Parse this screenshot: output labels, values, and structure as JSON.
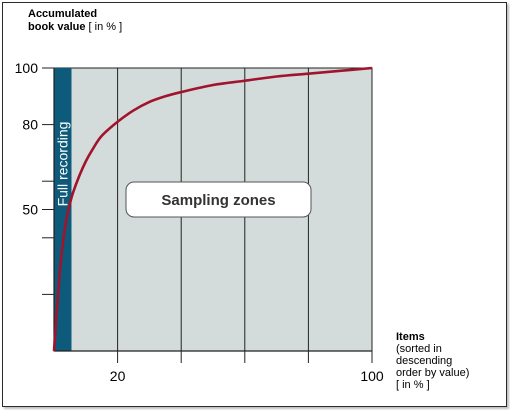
{
  "chart_data": {
    "type": "line",
    "y_title": {
      "line1": "Accumulated",
      "line2_bold": "book value",
      "line2_unit": " [ in % ]"
    },
    "x_title": {
      "bold": "Items",
      "line2": "(sorted in descending",
      "line3": "order by value)",
      "line4": "[ in % ]"
    },
    "xlim": [
      0,
      100
    ],
    "ylim": [
      0,
      100
    ],
    "y_tick_labels": [
      {
        "value": 100,
        "label": "100"
      },
      {
        "value": 80,
        "label": "80"
      },
      {
        "value": 50,
        "label": "50"
      }
    ],
    "x_tick_labels": [
      {
        "value": 20,
        "label": "20"
      },
      {
        "value": 100,
        "label": "100"
      }
    ],
    "grid_x": [
      20,
      40,
      60,
      80
    ],
    "full_recording_band": {
      "from": 0,
      "to": 5.5,
      "label": "Full recording",
      "color": "#0d5a7a"
    },
    "sampling_zone_label": "Sampling zones",
    "zone_fill": "#d4dcdb",
    "curve_color": "#a0142d",
    "series": [
      {
        "x": [
          0,
          1,
          2,
          3,
          4,
          5,
          6,
          8,
          10,
          12,
          15,
          20,
          25,
          30,
          35,
          40,
          50,
          60,
          70,
          80,
          90,
          100
        ],
        "y": [
          0,
          16,
          30,
          40,
          47,
          52,
          56,
          62,
          67,
          71,
          76,
          81,
          85,
          88,
          90,
          91.5,
          94,
          95.5,
          97,
          98,
          99,
          100
        ]
      }
    ]
  }
}
